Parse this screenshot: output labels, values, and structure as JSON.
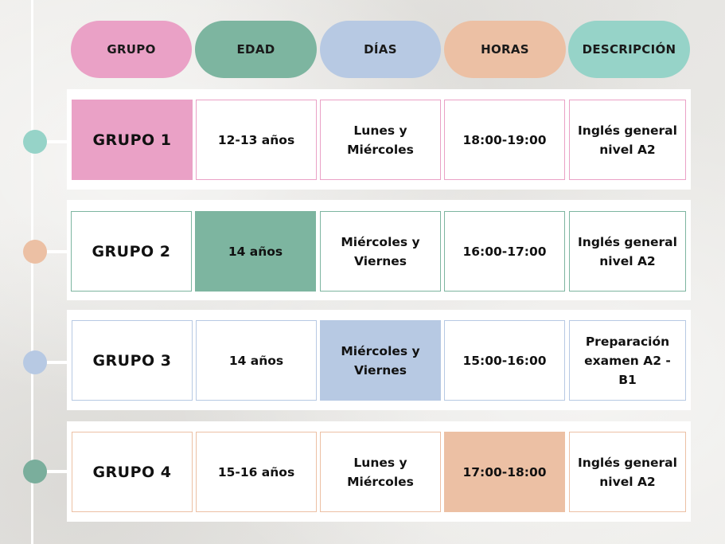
{
  "colors": {
    "pink": "#eaa1c6",
    "green": "#7db5a0",
    "blue": "#b7c9e3",
    "peach": "#ecc0a4",
    "teal": "#96d3c8",
    "dot_green": "#7aae9c"
  },
  "headers": [
    "GRUPO",
    "EDAD",
    "DÍAS",
    "HORAS",
    "DESCRIPCIÓN"
  ],
  "rows": [
    {
      "grupo": "GRUPO 1",
      "edad": "12-13 años",
      "dias": "Lunes y Miércoles",
      "horas": "18:00-19:00",
      "descripcion": "Inglés general nivel A2"
    },
    {
      "grupo": "GRUPO 2",
      "edad": "14 años",
      "dias": "Miércoles y Viernes",
      "horas": "16:00-17:00",
      "descripcion": "Inglés general nivel A2"
    },
    {
      "grupo": "GRUPO 3",
      "edad": "14 años",
      "dias": "Miércoles y Viernes",
      "horas": "15:00-16:00",
      "descripcion": "Preparación examen A2 - B1"
    },
    {
      "grupo": "GRUPO 4",
      "edad": "15-16 años",
      "dias": "Lunes y Miércoles",
      "horas": "17:00-18:00",
      "descripcion": "Inglés general nivel A2"
    }
  ]
}
